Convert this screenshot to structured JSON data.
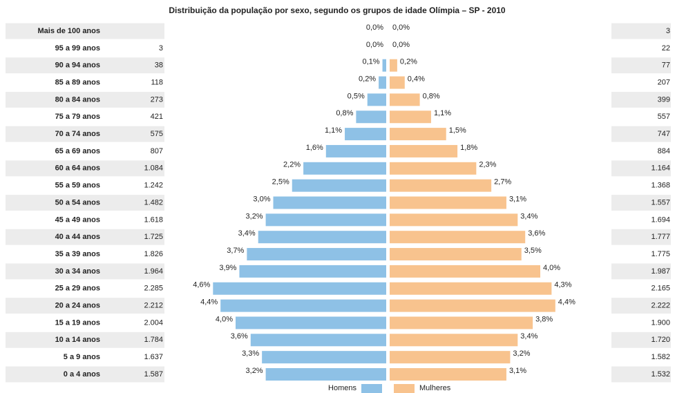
{
  "chart_data": {
    "type": "pyramid",
    "title": "Distribuição da população por sexo, segundo os grupos de idade Olímpia – SP - 2010",
    "categories": [
      "Mais de 100 anos",
      "95 a 99 anos",
      "90 a 94 anos",
      "85 a 89 anos",
      "80 a 84 anos",
      "75 a 79 anos",
      "70 a 74 anos",
      "65 a 69 anos",
      "60 a 64 anos",
      "55 a 59 anos",
      "50 a 54 anos",
      "45 a 49 anos",
      "40 a 44 anos",
      "35 a 39 anos",
      "30 a 34 anos",
      "25 a 29 anos",
      "20 a 24 anos",
      "15 a 19 anos",
      "10 a 14 anos",
      "5 a 9 anos",
      "0 a 4 anos"
    ],
    "series": [
      {
        "name": "Homens",
        "color": "#8ec1e6",
        "values": [
          0.0,
          0.0,
          0.1,
          0.2,
          0.5,
          0.8,
          1.1,
          1.6,
          2.2,
          2.5,
          3.0,
          3.2,
          3.4,
          3.7,
          3.9,
          4.6,
          4.4,
          4.0,
          3.6,
          3.3,
          3.2
        ],
        "value_labels": [
          "0,0%",
          "0,0%",
          "0,1%",
          "0,2%",
          "0,5%",
          "0,8%",
          "1,1%",
          "1,6%",
          "2,2%",
          "2,5%",
          "3,0%",
          "3,2%",
          "3,4%",
          "3,7%",
          "3,9%",
          "4,6%",
          "4,4%",
          "4,0%",
          "3,6%",
          "3,3%",
          "3,2%"
        ],
        "counts": [
          null,
          3,
          38,
          118,
          273,
          421,
          575,
          807,
          1084,
          1242,
          1482,
          1618,
          1725,
          1826,
          1964,
          2285,
          2212,
          2004,
          1784,
          1637,
          1587
        ],
        "count_labels": [
          null,
          "3",
          "38",
          "118",
          "273",
          "421",
          "575",
          "807",
          "1.084",
          "1.242",
          "1.482",
          "1.618",
          "1.725",
          "1.826",
          "1.964",
          "2.285",
          "2.212",
          "2.004",
          "1.784",
          "1.637",
          "1.587"
        ]
      },
      {
        "name": "Mulheres",
        "color": "#f8c38e",
        "values": [
          0.0,
          0.0,
          0.2,
          0.4,
          0.8,
          1.1,
          1.5,
          1.8,
          2.3,
          2.7,
          3.1,
          3.4,
          3.6,
          3.5,
          4.0,
          4.3,
          4.4,
          3.8,
          3.4,
          3.2,
          3.1
        ],
        "value_labels": [
          "0,0%",
          "0,0%",
          "0,2%",
          "0,4%",
          "0,8%",
          "1,1%",
          "1,5%",
          "1,8%",
          "2,3%",
          "2,7%",
          "3,1%",
          "3,4%",
          "3,6%",
          "3,5%",
          "4,0%",
          "4,3%",
          "4,4%",
          "3,8%",
          "3,4%",
          "3,2%",
          "3,1%"
        ],
        "counts": [
          3,
          22,
          77,
          207,
          399,
          557,
          747,
          884,
          1164,
          1368,
          1557,
          1694,
          1777,
          1775,
          1987,
          2165,
          2222,
          1900,
          1720,
          1582,
          1532
        ],
        "count_labels": [
          "3",
          "22",
          "77",
          "207",
          "399",
          "557",
          "747",
          "884",
          "1.164",
          "1.368",
          "1.557",
          "1.694",
          "1.777",
          "1.775",
          "1.987",
          "2.165",
          "2.222",
          "1.900",
          "1.720",
          "1.582",
          "1.532"
        ]
      }
    ]
  }
}
